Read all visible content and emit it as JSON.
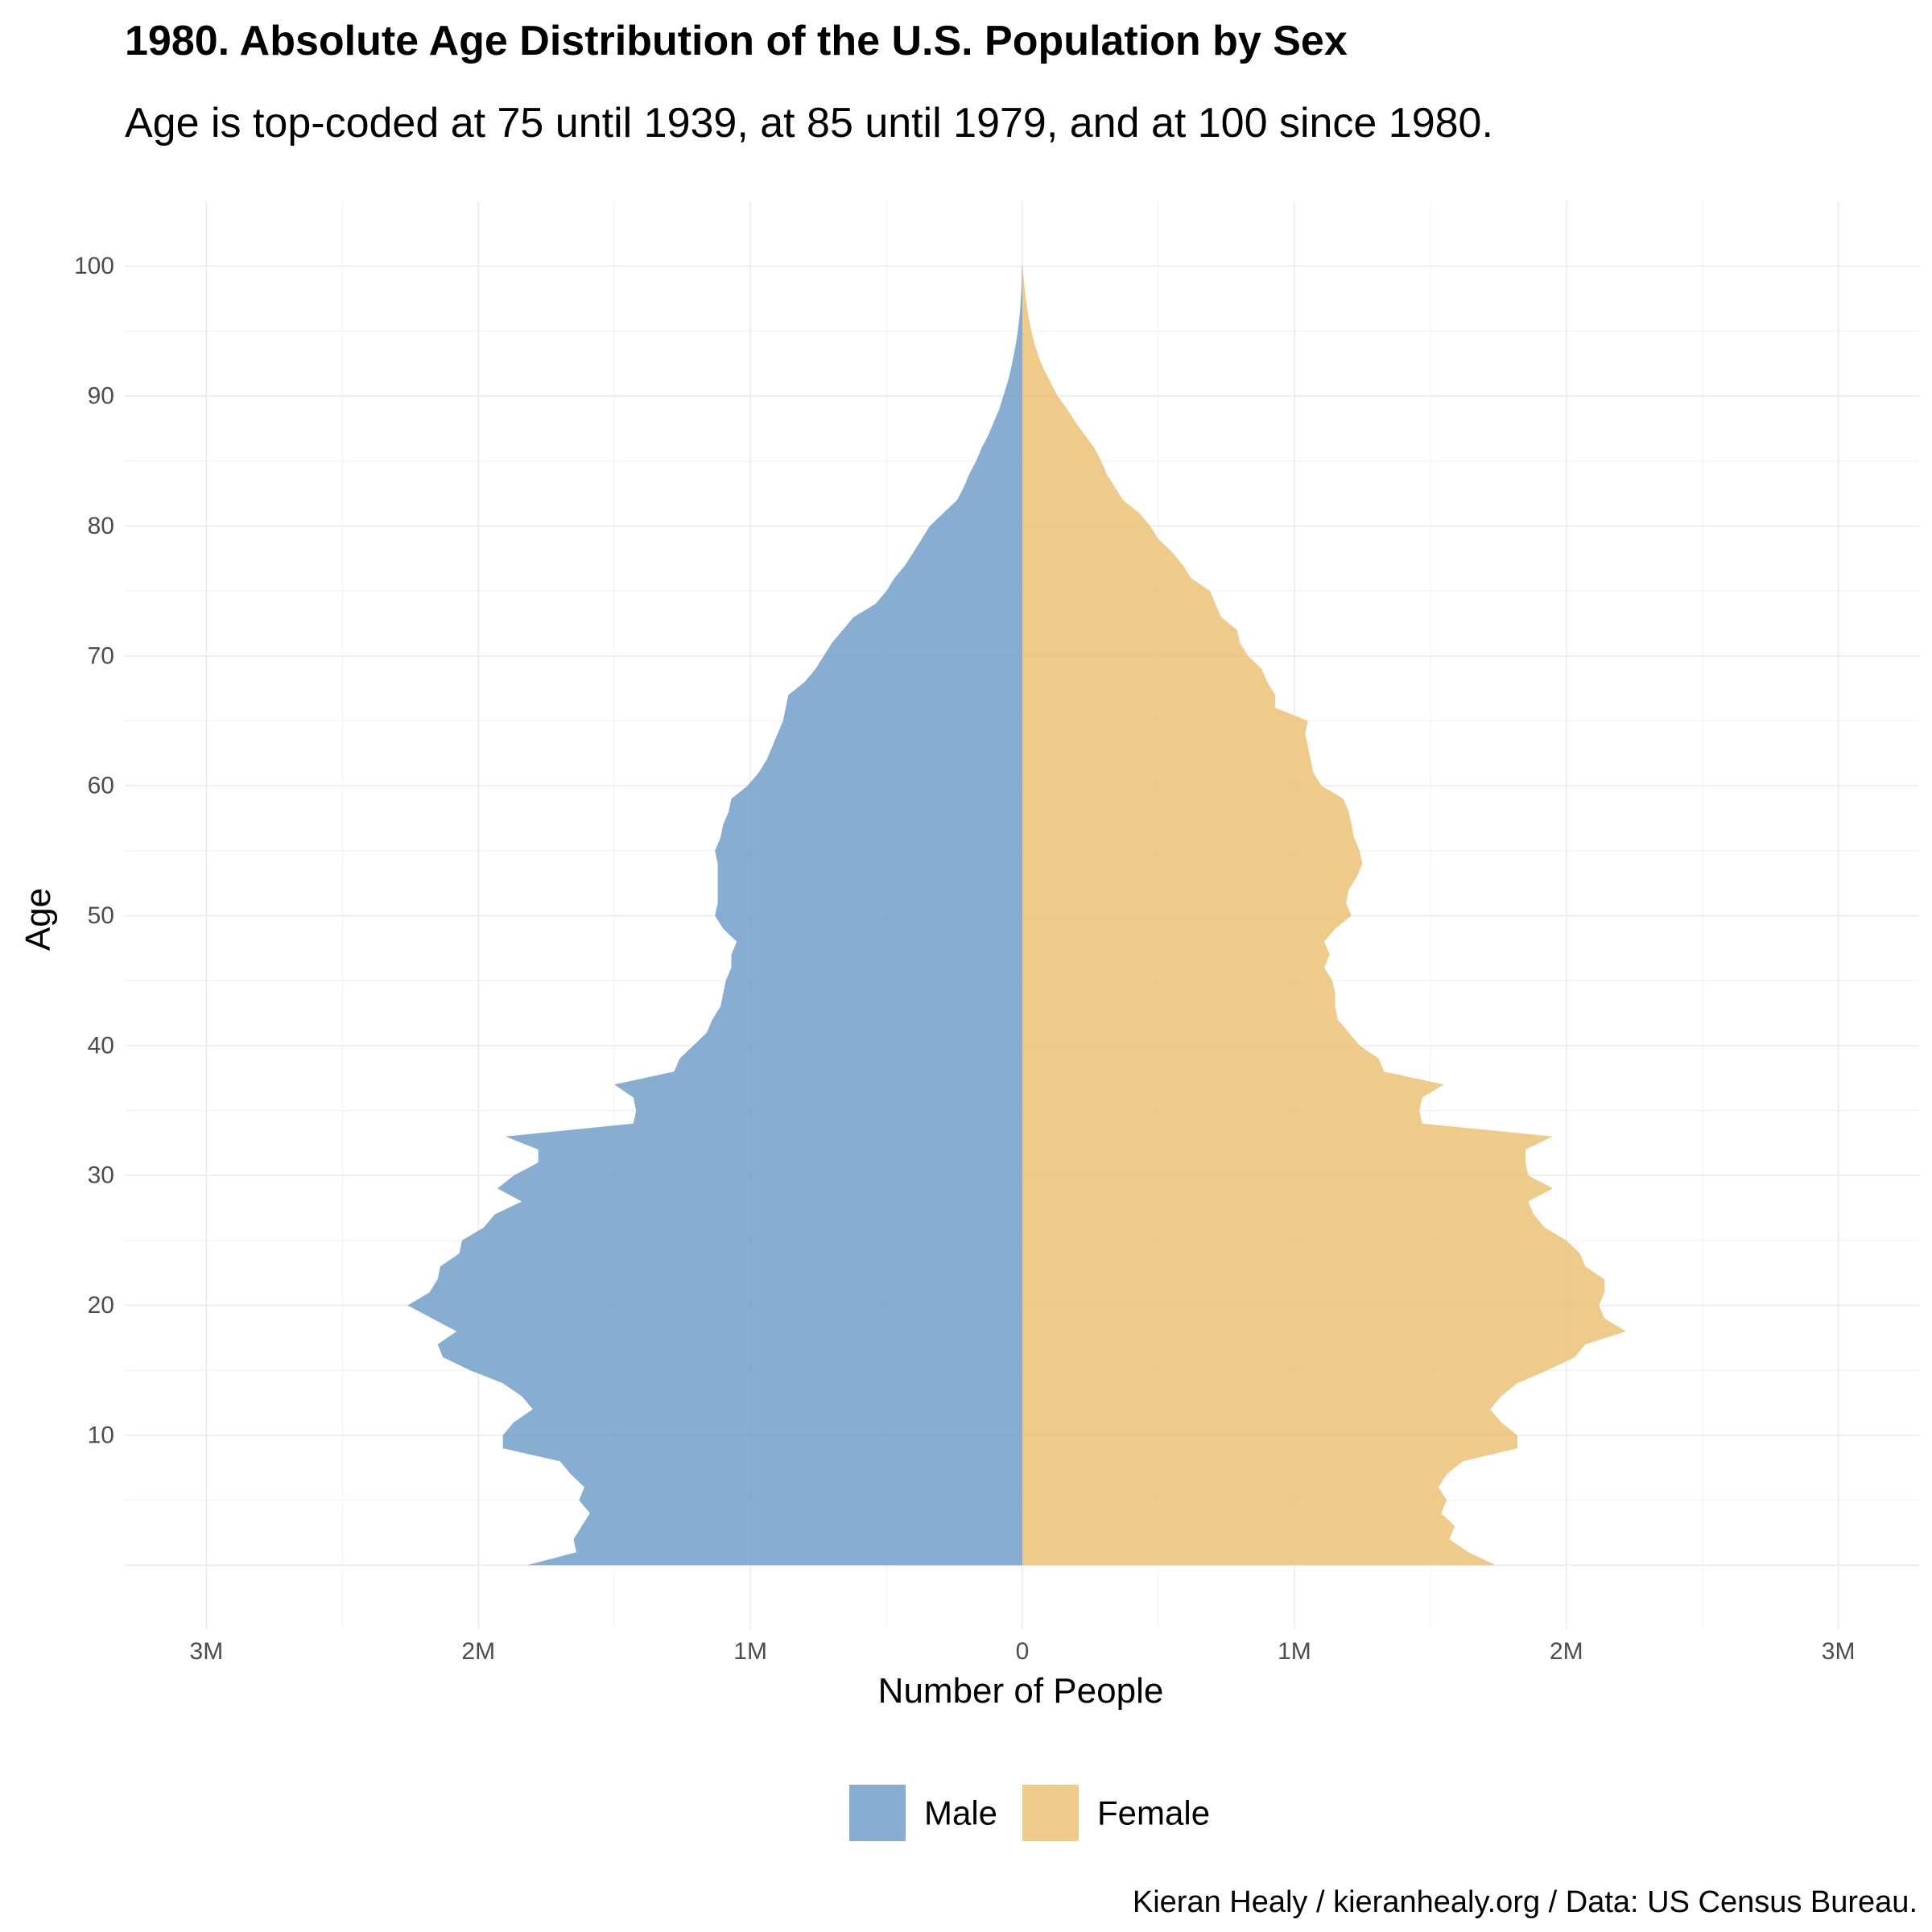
{
  "chart_data": {
    "type": "area",
    "title": "1980. Absolute Age Distribution of the U.S. Population by Sex",
    "subtitle": "Age is top-coded at 75 until 1939, at 85 until 1979, and at 100 since 1980.",
    "xlabel": "Number of People",
    "ylabel": "Age",
    "caption": "Kieran Healy / kieranhealy.org / Data: US Census Bureau.",
    "xlim": [
      -3300000,
      3300000
    ],
    "ylim": [
      -5,
      105
    ],
    "x_ticks": [
      {
        "value": -3000000,
        "label": "3M"
      },
      {
        "value": -2000000,
        "label": "2M"
      },
      {
        "value": -1000000,
        "label": "1M"
      },
      {
        "value": 0,
        "label": "0"
      },
      {
        "value": 1000000,
        "label": "1M"
      },
      {
        "value": 2000000,
        "label": "2M"
      },
      {
        "value": 3000000,
        "label": "3M"
      }
    ],
    "y_ticks": [
      {
        "value": 10,
        "label": "10"
      },
      {
        "value": 20,
        "label": "20"
      },
      {
        "value": 30,
        "label": "30"
      },
      {
        "value": 40,
        "label": "40"
      },
      {
        "value": 50,
        "label": "50"
      },
      {
        "value": 60,
        "label": "60"
      },
      {
        "value": 70,
        "label": "70"
      },
      {
        "value": 80,
        "label": "80"
      },
      {
        "value": 90,
        "label": "90"
      },
      {
        "value": 100,
        "label": "100"
      }
    ],
    "ages": [
      0,
      1,
      2,
      3,
      4,
      5,
      6,
      7,
      8,
      9,
      10,
      11,
      12,
      13,
      14,
      15,
      16,
      17,
      18,
      19,
      20,
      21,
      22,
      23,
      24,
      25,
      26,
      27,
      28,
      29,
      30,
      31,
      32,
      33,
      34,
      35,
      36,
      37,
      38,
      39,
      40,
      41,
      42,
      43,
      44,
      45,
      46,
      47,
      48,
      49,
      50,
      51,
      52,
      53,
      54,
      55,
      56,
      57,
      58,
      59,
      60,
      61,
      62,
      63,
      64,
      65,
      66,
      67,
      68,
      69,
      70,
      71,
      72,
      73,
      74,
      75,
      76,
      77,
      78,
      79,
      80,
      81,
      82,
      83,
      84,
      85,
      86,
      87,
      88,
      89,
      90,
      91,
      92,
      93,
      94,
      95,
      96,
      97,
      98,
      99,
      100
    ],
    "series": [
      {
        "name": "Male",
        "color": "#6c9bc7",
        "values": [
          1820000,
          1640000,
          1650000,
          1620000,
          1590000,
          1630000,
          1610000,
          1660000,
          1700000,
          1910000,
          1910000,
          1870000,
          1800000,
          1840000,
          1910000,
          2030000,
          2130000,
          2150000,
          2080000,
          2170000,
          2260000,
          2180000,
          2150000,
          2140000,
          2070000,
          2060000,
          1980000,
          1940000,
          1840000,
          1930000,
          1870000,
          1780000,
          1780000,
          1900000,
          1430000,
          1420000,
          1430000,
          1500000,
          1280000,
          1260000,
          1210000,
          1160000,
          1140000,
          1110000,
          1100000,
          1090000,
          1070000,
          1070000,
          1050000,
          1100000,
          1130000,
          1120000,
          1120000,
          1120000,
          1120000,
          1130000,
          1110000,
          1100000,
          1080000,
          1070000,
          1010000,
          970000,
          940000,
          920000,
          900000,
          880000,
          870000,
          860000,
          800000,
          760000,
          730000,
          700000,
          660000,
          620000,
          540000,
          500000,
          470000,
          430000,
          400000,
          370000,
          340000,
          290000,
          240000,
          215000,
          195000,
          170000,
          150000,
          125000,
          105000,
          85000,
          70000,
          55000,
          43000,
          33000,
          24000,
          17000,
          11000,
          7000,
          4000,
          2000,
          1000
        ]
      },
      {
        "name": "Female",
        "color": "#ecc072",
        "values": [
          1740000,
          1640000,
          1570000,
          1590000,
          1540000,
          1560000,
          1530000,
          1560000,
          1620000,
          1820000,
          1820000,
          1760000,
          1720000,
          1760000,
          1820000,
          1930000,
          2030000,
          2070000,
          2220000,
          2140000,
          2120000,
          2140000,
          2140000,
          2070000,
          2050000,
          2000000,
          1920000,
          1880000,
          1860000,
          1950000,
          1860000,
          1850000,
          1850000,
          1950000,
          1470000,
          1460000,
          1470000,
          1550000,
          1330000,
          1310000,
          1240000,
          1200000,
          1160000,
          1150000,
          1150000,
          1140000,
          1110000,
          1130000,
          1110000,
          1150000,
          1210000,
          1190000,
          1200000,
          1230000,
          1250000,
          1240000,
          1220000,
          1210000,
          1200000,
          1180000,
          1100000,
          1070000,
          1060000,
          1050000,
          1040000,
          1050000,
          930000,
          930000,
          900000,
          880000,
          830000,
          800000,
          790000,
          730000,
          710000,
          690000,
          620000,
          590000,
          550000,
          500000,
          470000,
          430000,
          370000,
          340000,
          310000,
          290000,
          265000,
          230000,
          195000,
          165000,
          130000,
          105000,
          80000,
          60000,
          45000,
          33000,
          24000,
          16000,
          10000,
          5000,
          1500
        ]
      }
    ]
  }
}
